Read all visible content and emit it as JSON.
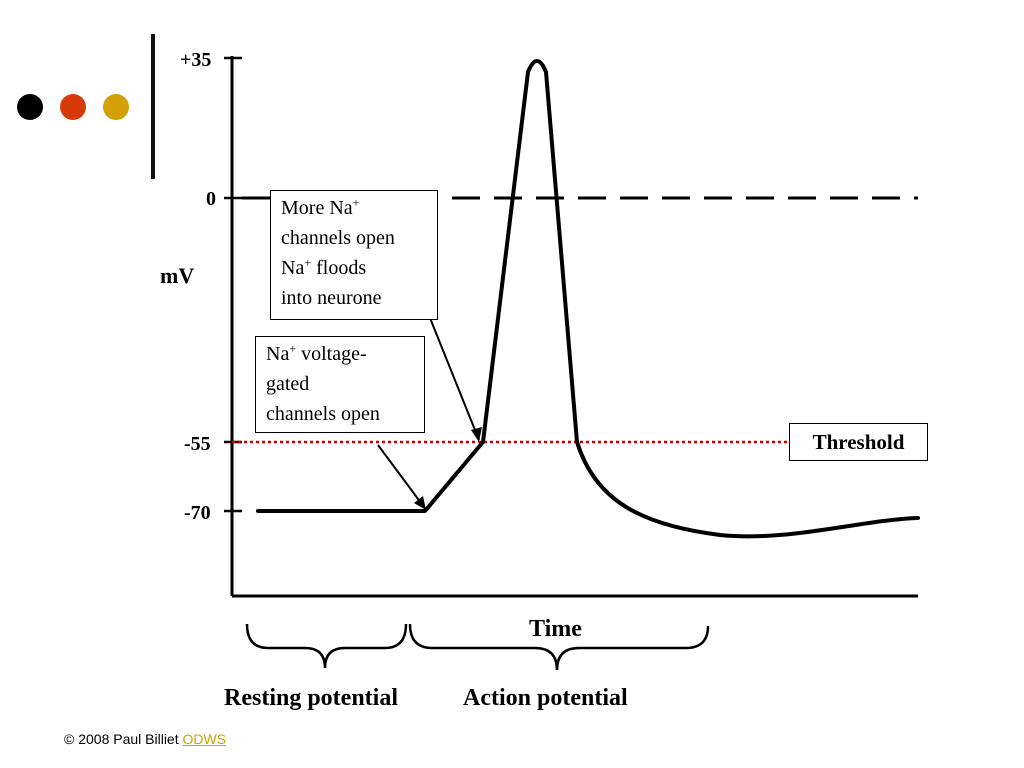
{
  "decor": {
    "dot_colors": [
      "#000000",
      "#d63a0a",
      "#d4a00a"
    ],
    "threshold_color": "#cc0000"
  },
  "axis": {
    "y_unit": "mV",
    "x_label": "Time",
    "tick_labels": [
      "+35",
      "0",
      "-55",
      "-70"
    ]
  },
  "annotations": {
    "more_na": {
      "line1": "More Na",
      "line1_sup": "+",
      "line2": "channels open",
      "line3": "Na",
      "line3_sup": "+",
      "line3_rest": " floods",
      "line4": "into neurone"
    },
    "na_voltage": {
      "line1": "Na",
      "line1_sup": "+",
      "line1_rest": " voltage-",
      "line2": "gated",
      "line3": "channels open"
    },
    "threshold": "Threshold"
  },
  "phases": {
    "resting": "Resting potential",
    "action": "Action potential"
  },
  "footer": {
    "copyright": "© 2008 Paul Billiet ",
    "link_text": "ODWS"
  }
}
